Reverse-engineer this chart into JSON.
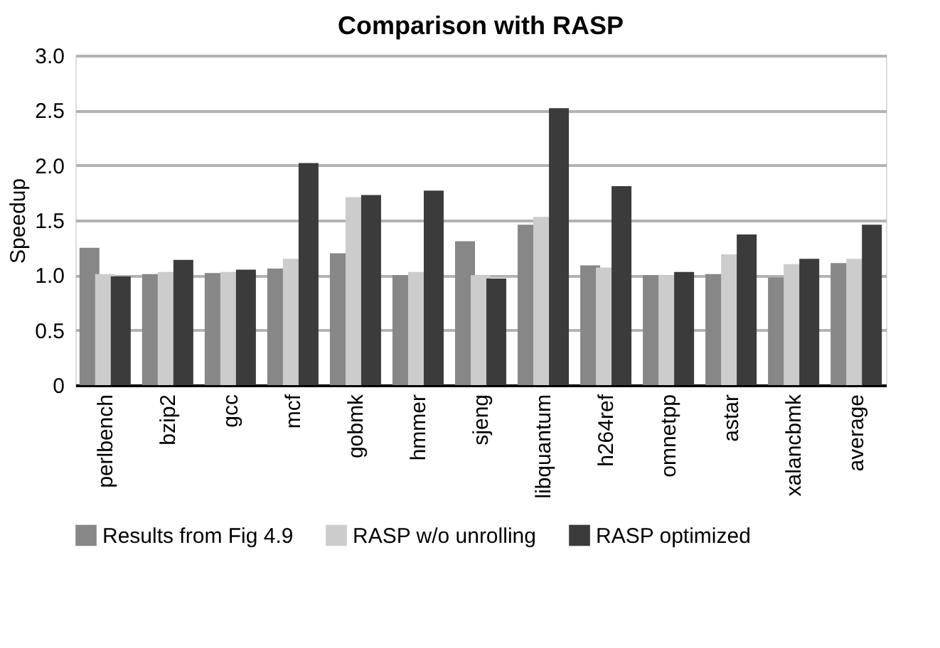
{
  "chart_data": {
    "type": "bar",
    "title": "Comparison with RASP",
    "ylabel": "Speedup",
    "categories": [
      "perlbench",
      "bzip2",
      "gcc",
      "mcf",
      "gobmk",
      "hmmer",
      "sjeng",
      "libquantum",
      "h264ref",
      "omnetpp",
      "astar",
      "xalancbmk",
      "average"
    ],
    "series": [
      {
        "name": "Results from Fig 4.9",
        "color": "#878787",
        "values": [
          1.25,
          1.01,
          1.02,
          1.06,
          1.2,
          1.0,
          1.31,
          1.46,
          1.09,
          1.0,
          1.01,
          0.98,
          1.11
        ]
      },
      {
        "name": "RASP w/o unrolling",
        "color": "#cccccc",
        "values": [
          1.01,
          1.03,
          1.03,
          1.15,
          1.71,
          1.03,
          1.0,
          1.53,
          1.07,
          1.0,
          1.19,
          1.1,
          1.15
        ]
      },
      {
        "name": "RASP optimized",
        "color": "#3a3b3a",
        "values": [
          0.99,
          1.14,
          1.05,
          2.02,
          1.73,
          1.77,
          0.97,
          2.52,
          1.81,
          1.03,
          1.37,
          1.15,
          1.46
        ]
      }
    ],
    "ylim": [
      0,
      3.0
    ],
    "yticks": [
      {
        "value": 0,
        "label": "0"
      },
      {
        "value": 0.5,
        "label": "0.5"
      },
      {
        "value": 1.0,
        "label": "1.0"
      },
      {
        "value": 1.5,
        "label": "1.5"
      },
      {
        "value": 2.0,
        "label": "2.0"
      },
      {
        "value": 2.5,
        "label": "2.5"
      },
      {
        "value": 3.0,
        "label": "3.0"
      }
    ],
    "grid": "y",
    "legend": "bottom"
  }
}
